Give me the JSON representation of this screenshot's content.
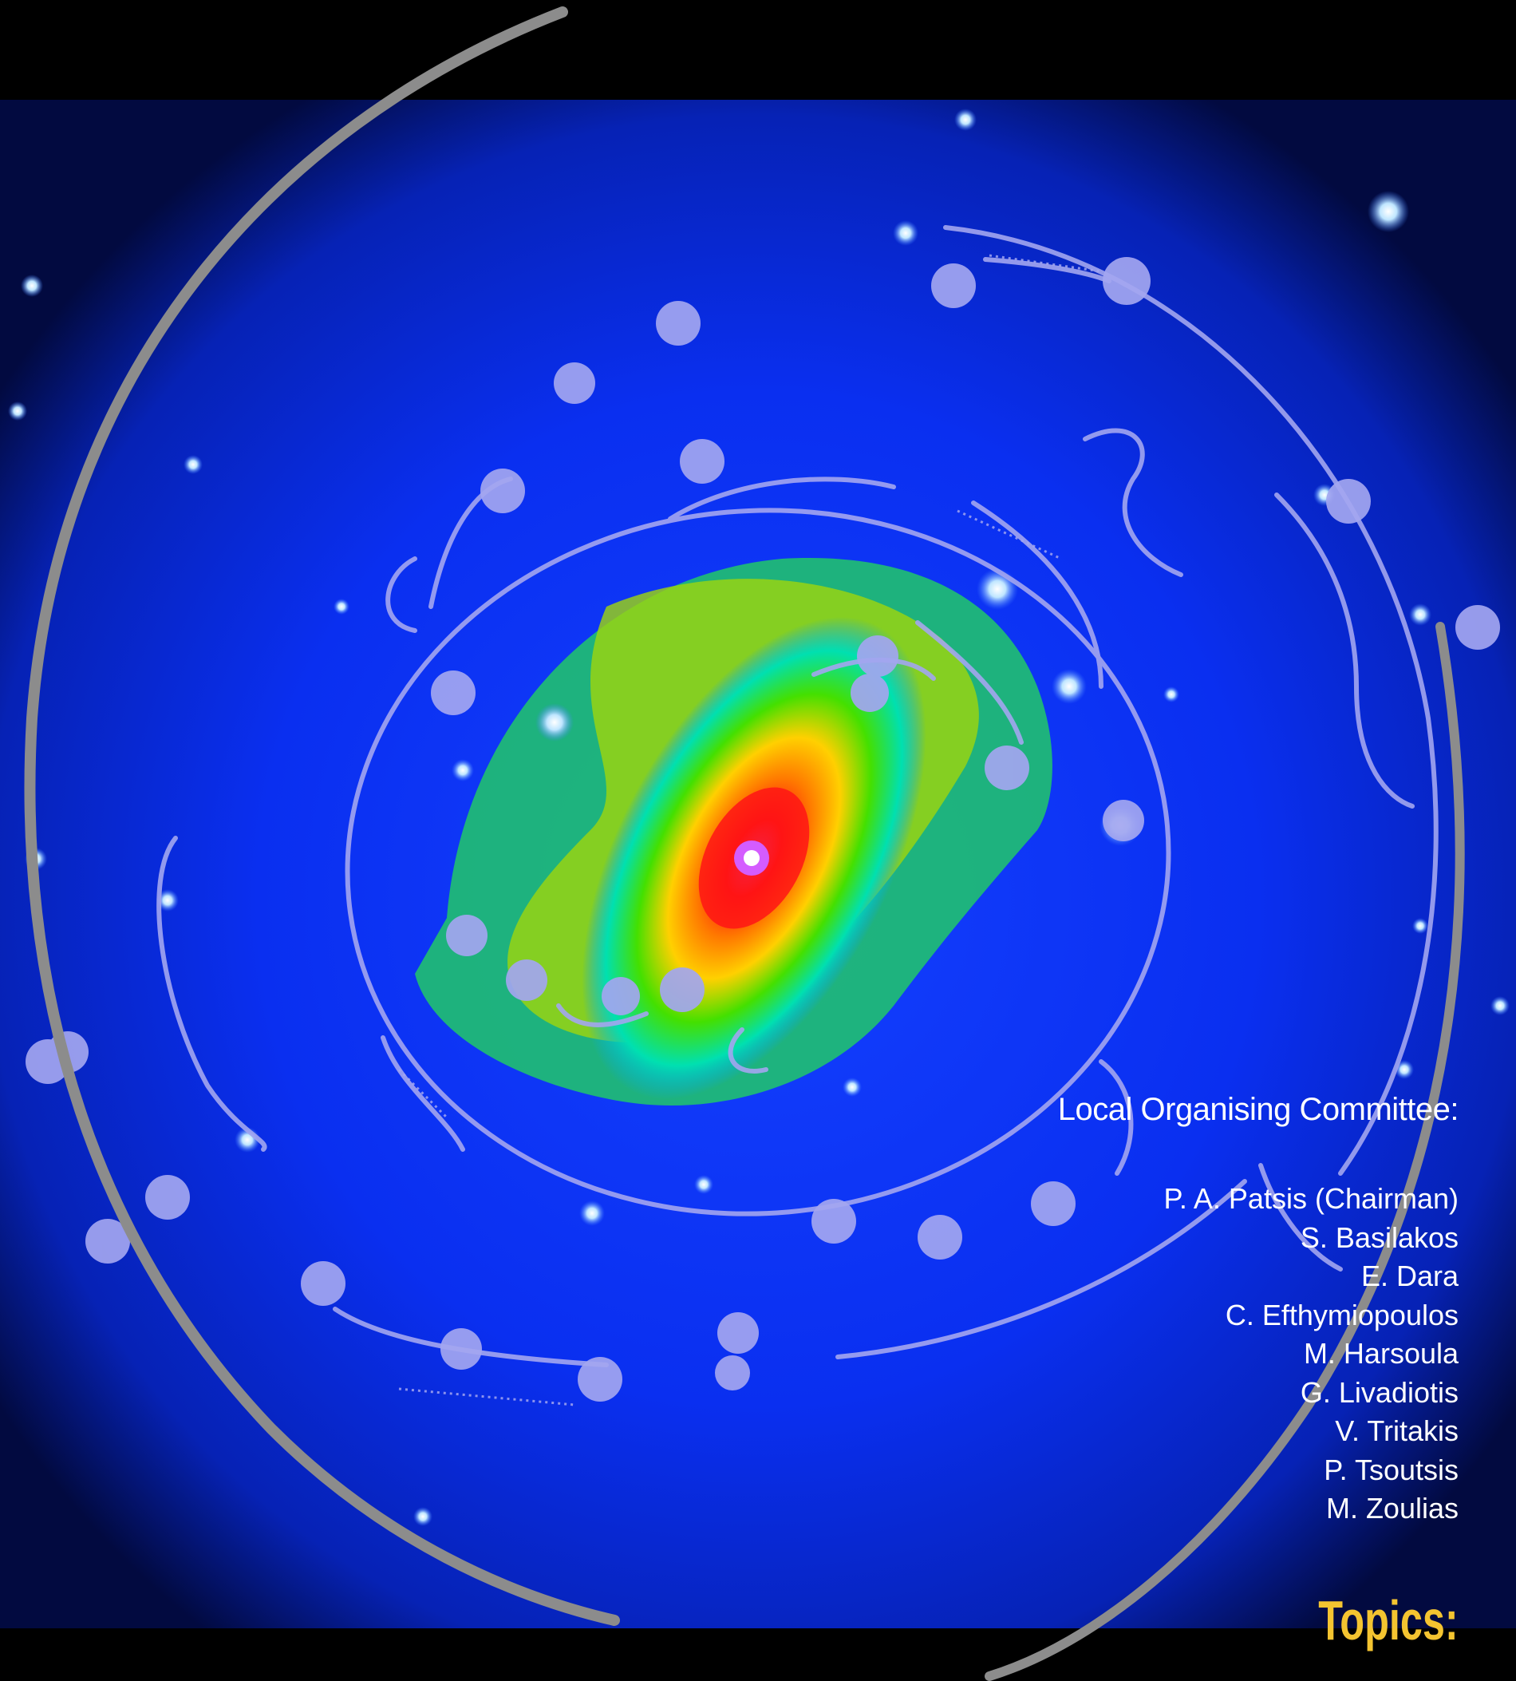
{
  "committee": {
    "heading": "Local Organising Committee:",
    "members": [
      "P. A. Patsis (Chairman)",
      "S. Basilakos",
      "E. Dara",
      "C. Efthymiopoulos",
      "M. Harsoula",
      "G. Livadiotis",
      "V. Tritakis",
      "P. Tsoutsis",
      "M. Zoulias"
    ]
  },
  "topics_heading": "Topics:",
  "colors": {
    "background": "#000000",
    "sky": "#0a2cf0",
    "overlay_lines": "#9fa2ee",
    "outer_arc": "#8c8c8c",
    "heading_accent": "#f4c430",
    "text": "#ffffff"
  }
}
